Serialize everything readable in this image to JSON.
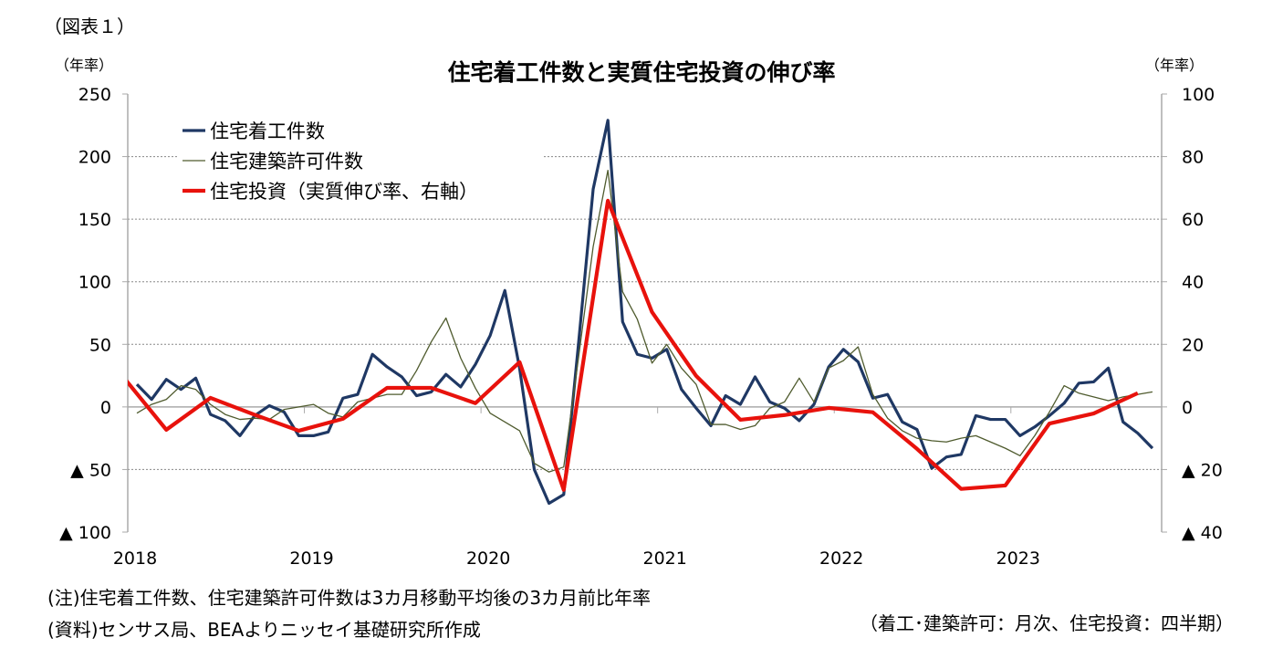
{
  "figure_label": "（図表１）",
  "chart_data": {
    "type": "line",
    "title": "住宅着工件数と実質住宅投資の伸び率",
    "left_unit": "（年率）",
    "right_unit": "（年率）",
    "ylim_left": [
      -100,
      250
    ],
    "ylim_right": [
      -40,
      100
    ],
    "left_ticks": [
      {
        "value": 250,
        "label": "250"
      },
      {
        "value": 200,
        "label": "200"
      },
      {
        "value": 150,
        "label": "150"
      },
      {
        "value": 100,
        "label": "100"
      },
      {
        "value": 50,
        "label": "50"
      },
      {
        "value": 0,
        "label": "0"
      },
      {
        "value": -50,
        "label": "▲ 50"
      },
      {
        "value": -100,
        "label": "▲ 100"
      }
    ],
    "right_ticks": [
      {
        "value": 100,
        "label": "100"
      },
      {
        "value": 80,
        "label": "80"
      },
      {
        "value": 60,
        "label": "60"
      },
      {
        "value": 40,
        "label": "40"
      },
      {
        "value": 20,
        "label": "20"
      },
      {
        "value": 0,
        "label": "0"
      },
      {
        "value": -20,
        "label": "▲ 20"
      },
      {
        "value": -40,
        "label": "▲ 40"
      }
    ],
    "x_ticks": [
      "2018",
      "2019",
      "2020",
      "2021",
      "2022",
      "2023"
    ],
    "x_start": "2018-01",
    "grid": "horizontal dotted",
    "legend_placement": "top-left",
    "colors": {
      "housing_starts": "#1f3864",
      "permits": "#4f5b2e",
      "investment": "#e8120c",
      "grid": "#888888",
      "axis": "#aaaaaa"
    },
    "series": [
      {
        "name": "住宅着工件数",
        "axis": "left",
        "frequency": "monthly",
        "values": [
          18,
          6,
          22,
          14,
          23,
          -6,
          -11,
          -23,
          -7,
          1,
          -4,
          -23,
          -23,
          -20,
          7,
          10,
          42,
          32,
          24,
          9,
          12,
          26,
          16,
          34,
          57,
          93,
          31,
          -50,
          -77,
          -70,
          50,
          174,
          229,
          68,
          42,
          39,
          46,
          14,
          -1,
          -15,
          9,
          2,
          24,
          4,
          -1,
          -11,
          2,
          32,
          46,
          36,
          7,
          10,
          -12,
          -18,
          -49,
          -40,
          -38,
          -7,
          -10,
          -10,
          -23,
          -16,
          -7,
          3,
          19,
          20,
          31,
          -12,
          -21,
          -33
        ]
      },
      {
        "name": "住宅建築許可件数",
        "axis": "left",
        "frequency": "monthly",
        "values": [
          -5,
          2,
          6,
          17,
          14,
          2,
          -6,
          -10,
          -9,
          -10,
          -2,
          0,
          2,
          -5,
          -8,
          4,
          7,
          10,
          10,
          29,
          52,
          71,
          39,
          15,
          -5,
          -12,
          -19,
          -45,
          -52,
          -48,
          39,
          128,
          189,
          92,
          70,
          35,
          50,
          31,
          18,
          -14,
          -14,
          -18,
          -15,
          -1,
          4,
          23,
          4,
          31,
          37,
          48,
          10,
          -9,
          -19,
          -25,
          -27,
          -28,
          -25,
          -23,
          -28,
          -33,
          -39,
          -23,
          -4,
          17,
          11,
          8,
          5,
          8,
          10,
          12
        ]
      },
      {
        "name": "住宅投資（実質伸び率、右軸）",
        "axis": "right",
        "frequency": "quarterly",
        "quarters": [
          "2017Q4",
          "2018Q1",
          "2018Q2",
          "2018Q3",
          "2018Q4",
          "2019Q1",
          "2019Q2",
          "2019Q3",
          "2019Q4",
          "2020Q1",
          "2020Q2",
          "2020Q3",
          "2020Q4",
          "2021Q1",
          "2021Q2",
          "2021Q3",
          "2021Q4",
          "2022Q1",
          "2022Q2",
          "2022Q3",
          "2022Q4",
          "2023Q1",
          "2023Q2",
          "2023Q3"
        ],
        "values": [
          10,
          -7.3,
          2.9,
          -2.5,
          -7.6,
          -3.8,
          6.1,
          6.1,
          1.2,
          14.3,
          -26.5,
          65.9,
          30.3,
          9.9,
          -4.1,
          -2.6,
          -0.3,
          -1.7,
          -13.4,
          -26.2,
          -25.1,
          -5.3,
          -2.1,
          4.4
        ]
      }
    ]
  },
  "notes": {
    "note1": "(注)住宅着工件数、住宅建築許可件数は3カ月移動平均後の3カ月前比年率",
    "note2": "(資料)センサス局、BEAよりニッセイ基礎研究所作成",
    "note3": "（着工･建築許可：月次、住宅投資：四半期）"
  }
}
